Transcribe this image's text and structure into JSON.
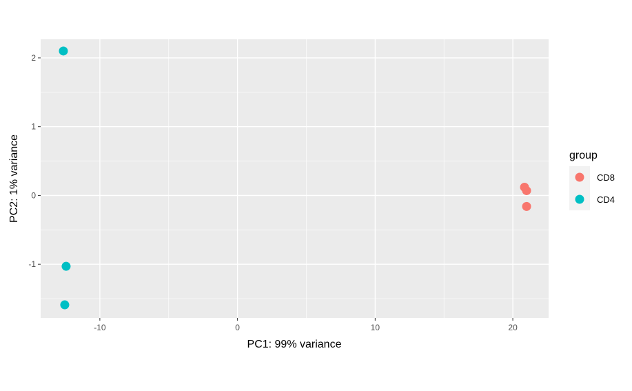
{
  "chart_data": {
    "type": "scatter",
    "xlabel": "PC1: 99% variance",
    "ylabel": "PC2: 1% variance",
    "xlim": [
      -14.3,
      22.6
    ],
    "ylim": [
      -1.78,
      2.27
    ],
    "x_ticks": [
      -10,
      0,
      10,
      20
    ],
    "x_tick_labels": [
      "-10",
      "0",
      "10",
      "20"
    ],
    "y_ticks": [
      -1,
      0,
      1,
      2
    ],
    "y_tick_labels": [
      "-1",
      "0",
      "1",
      "2"
    ],
    "grid": true,
    "legend": {
      "title": "group",
      "placement": "right"
    },
    "series": [
      {
        "name": "CD8",
        "color": "#F8766D",
        "points": [
          {
            "x": 20.85,
            "y": 0.12
          },
          {
            "x": 21.0,
            "y": 0.07
          },
          {
            "x": 21.0,
            "y": -0.16
          }
        ]
      },
      {
        "name": "CD4",
        "color": "#00BFC4",
        "points": [
          {
            "x": -12.65,
            "y": 2.1
          },
          {
            "x": -12.45,
            "y": -1.03
          },
          {
            "x": -12.55,
            "y": -1.59
          }
        ]
      }
    ]
  }
}
